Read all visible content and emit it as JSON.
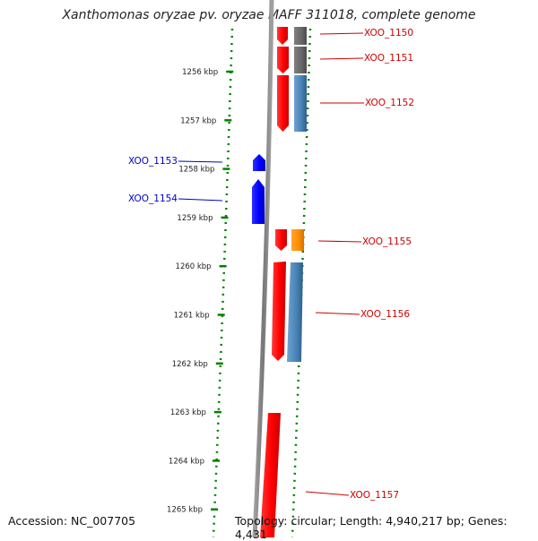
{
  "header": {
    "title": "Xanthomonas oryzae pv. oryzae MAFF 311018, complete genome"
  },
  "footer": {
    "accession": "Accession: NC_007705",
    "topology": "Topology: circular; Length: 4,940,217 bp; Genes: 4,431"
  },
  "axis_ticks": [
    {
      "label": "1256 kbp",
      "kbp": 1256
    },
    {
      "label": "1257 kbp",
      "kbp": 1257
    },
    {
      "label": "1258 kbp",
      "kbp": 1258
    },
    {
      "label": "1259 kbp",
      "kbp": 1259
    },
    {
      "label": "1260 kbp",
      "kbp": 1260
    },
    {
      "label": "1261 kbp",
      "kbp": 1261
    },
    {
      "label": "1262 kbp",
      "kbp": 1262
    },
    {
      "label": "1263 kbp",
      "kbp": 1263
    },
    {
      "label": "1264 kbp",
      "kbp": 1264
    },
    {
      "label": "1265 kbp",
      "kbp": 1265
    }
  ],
  "genes": [
    {
      "name": "XOO_1150",
      "strand": "plus",
      "gene_color": "#ff0000",
      "feature_color": "#666666"
    },
    {
      "name": "XOO_1151",
      "strand": "plus",
      "gene_color": "#ff0000",
      "feature_color": "#666666"
    },
    {
      "name": "XOO_1152",
      "strand": "plus",
      "gene_color": "#ff0000",
      "feature_color": "#4682b4"
    },
    {
      "name": "XOO_1153",
      "strand": "minus",
      "gene_color": "#0000ff"
    },
    {
      "name": "XOO_1154",
      "strand": "minus",
      "gene_color": "#0000ff"
    },
    {
      "name": "XOO_1155",
      "strand": "plus",
      "gene_color": "#ff0000",
      "feature_color": "#ff8c00"
    },
    {
      "name": "XOO_1156",
      "strand": "plus",
      "gene_color": "#ff0000",
      "feature_color": "#4682b4"
    },
    {
      "name": "XOO_1157",
      "strand": "plus",
      "gene_color": "#ff0000"
    }
  ],
  "colors": {
    "minus_label": "#0000cc",
    "plus_label": "#cc0000",
    "backbone": "#888888",
    "dotted_guides": "#008000"
  }
}
